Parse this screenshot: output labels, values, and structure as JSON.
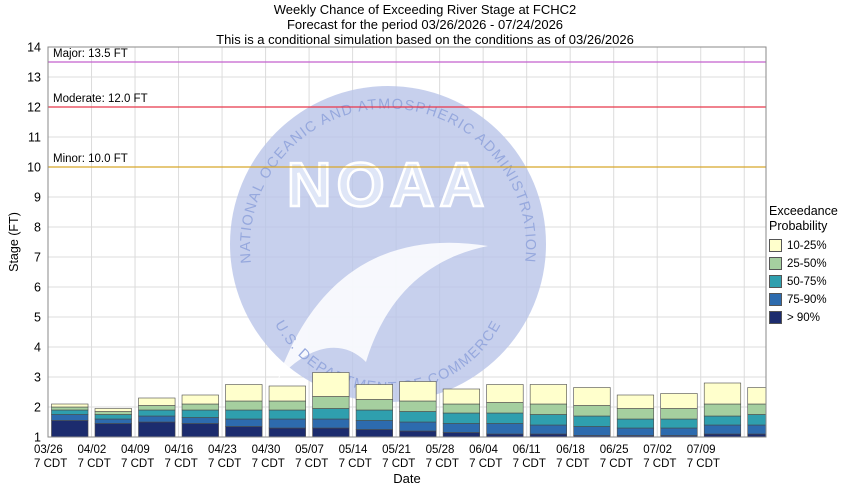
{
  "header": {
    "title": "Weekly Chance of Exceeding River Stage at FCHC2",
    "subtitle": "Forecast for the period 03/26/2026 - 07/24/2026",
    "note": "This is a conditional simulation based on the conditions as of 03/26/2026"
  },
  "watermark": {
    "org": "NOAA",
    "arc_top": "NATIONAL OCEANIC AND ATMOSPHERIC ADMINISTRATION",
    "arc_bottom": "U.S. DEPARTMENT OF COMMERCE"
  },
  "chart_data": {
    "type": "bar",
    "stacked": true,
    "title": "Weekly Chance of Exceeding River Stage at FCHC2",
    "xlabel": "Date",
    "ylabel": "Stage (FT)",
    "ylim": [
      1,
      14
    ],
    "yticks": [
      1,
      2,
      3,
      4,
      5,
      6,
      7,
      8,
      9,
      10,
      11,
      12,
      13,
      14
    ],
    "grid": true,
    "legend_position": "right",
    "x_tick_line2": "7 CDT",
    "categories": [
      "03/26",
      "04/02",
      "04/09",
      "04/16",
      "04/23",
      "04/30",
      "05/07",
      "05/14",
      "05/21",
      "05/28",
      "06/04",
      "06/11",
      "06/18",
      "06/25",
      "07/02",
      "07/09",
      ""
    ],
    "series": [
      {
        "name": "> 90%",
        "color": "#1c2c6e",
        "tops": [
          1.55,
          1.45,
          1.5,
          1.45,
          1.35,
          1.3,
          1.3,
          1.25,
          1.2,
          1.15,
          1.1,
          1.1,
          1.05,
          1.05,
          1.05,
          1.1,
          1.1
        ]
      },
      {
        "name": "75-90%",
        "color": "#2d6bae",
        "tops": [
          1.75,
          1.6,
          1.7,
          1.65,
          1.6,
          1.6,
          1.6,
          1.55,
          1.5,
          1.45,
          1.45,
          1.4,
          1.35,
          1.3,
          1.3,
          1.4,
          1.4
        ]
      },
      {
        "name": "50-75%",
        "color": "#2f9fae",
        "tops": [
          1.9,
          1.75,
          1.9,
          1.9,
          1.9,
          1.9,
          1.95,
          1.9,
          1.85,
          1.8,
          1.8,
          1.75,
          1.7,
          1.6,
          1.6,
          1.7,
          1.75
        ]
      },
      {
        "name": "25-50%",
        "color": "#a5cf9f",
        "tops": [
          2.0,
          1.85,
          2.05,
          2.1,
          2.2,
          2.2,
          2.35,
          2.25,
          2.2,
          2.1,
          2.15,
          2.1,
          2.05,
          1.95,
          1.95,
          2.1,
          2.1
        ]
      },
      {
        "name": "10-25%",
        "color": "#ffffcc",
        "tops": [
          2.1,
          1.95,
          2.3,
          2.4,
          2.75,
          2.7,
          3.15,
          2.75,
          2.85,
          2.6,
          2.75,
          2.75,
          2.65,
          2.4,
          2.45,
          2.8,
          2.65
        ]
      }
    ],
    "thresholds": [
      {
        "label": "Major: 13.5 FT",
        "value": 13.5,
        "color": "#c361ce"
      },
      {
        "label": "Moderate: 12.0 FT",
        "value": 12.0,
        "color": "#e8374b"
      },
      {
        "label": "Minor: 10.0 FT",
        "value": 10.0,
        "color": "#d8a62a"
      }
    ],
    "legend": {
      "title_line1": "Exceedance",
      "title_line2": "Probability",
      "entries": [
        {
          "label": "10-25%",
          "color": "#ffffcc"
        },
        {
          "label": "25-50%",
          "color": "#a5cf9f"
        },
        {
          "label": "50-75%",
          "color": "#2f9fae"
        },
        {
          "label": "75-90%",
          "color": "#2d6bae"
        },
        {
          "label": "> 90%",
          "color": "#1c2c6e"
        }
      ]
    }
  }
}
